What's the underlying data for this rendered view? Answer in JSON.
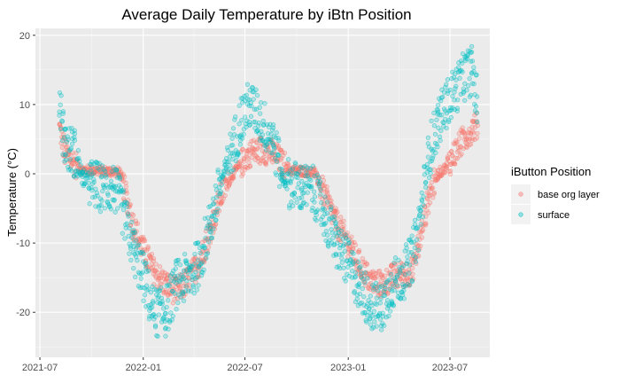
{
  "chart_data": {
    "type": "scatter",
    "title": "Average Daily Temperature by iBtn Position",
    "xlabel": "",
    "ylabel": "Temperature (°C)",
    "xlim": [
      "2021-06-23",
      "2023-09-10"
    ],
    "ylim": [
      -26.5,
      21
    ],
    "x_ticks": [
      {
        "date": "2021-07-01",
        "label": "2021-07"
      },
      {
        "date": "2022-01-01",
        "label": "2022-01"
      },
      {
        "date": "2022-07-01",
        "label": "2022-07"
      },
      {
        "date": "2023-01-01",
        "label": "2023-01"
      },
      {
        "date": "2023-07-01",
        "label": "2023-07"
      }
    ],
    "y_ticks": [
      -20,
      -10,
      0,
      10,
      20
    ],
    "grid": true,
    "legend": {
      "title": "iButton Position",
      "placement": "right",
      "entries": [
        "base org layer",
        "surface"
      ]
    },
    "series": [
      {
        "name": "base org layer",
        "color": "#F8766D",
        "marker": "open-circle",
        "points_are_envelope": true,
        "x": [
          "2021-08-05",
          "2021-08-15",
          "2021-09-01",
          "2021-09-15",
          "2021-10-01",
          "2021-10-20",
          "2021-11-10",
          "2021-11-20",
          "2021-12-01",
          "2021-12-15",
          "2022-01-01",
          "2022-01-20",
          "2022-02-10",
          "2022-03-01",
          "2022-03-20",
          "2022-04-10",
          "2022-05-01",
          "2022-05-20",
          "2022-06-10",
          "2022-06-25",
          "2022-07-10",
          "2022-08-01",
          "2022-08-20",
          "2022-09-05",
          "2022-09-20",
          "2022-10-10",
          "2022-11-01",
          "2022-11-20",
          "2022-12-10",
          "2023-01-01",
          "2023-01-20",
          "2023-02-10",
          "2023-03-01",
          "2023-03-20",
          "2023-04-10",
          "2023-04-25",
          "2023-05-10",
          "2023-05-25",
          "2023-06-10",
          "2023-06-25",
          "2023-07-10",
          "2023-07-25",
          "2023-08-10",
          "2023-08-20"
        ],
        "y": [
          6.5,
          3,
          1.5,
          0.5,
          0.5,
          0.4,
          0.3,
          0.2,
          -3,
          -7.5,
          -11,
          -14,
          -16,
          -17,
          -15.5,
          -13,
          -8,
          -3,
          0,
          1.5,
          3,
          3.5,
          3,
          1.5,
          0.5,
          0.4,
          0.2,
          -3,
          -7,
          -10,
          -13,
          -15.5,
          -16,
          -15,
          -14.5,
          -14,
          -9,
          -3,
          0,
          1,
          3,
          5,
          6.5,
          7
        ]
      },
      {
        "name": "surface",
        "color": "#00BFC4",
        "marker": "open-circle",
        "points_are_envelope": true,
        "x": [
          "2021-08-05",
          "2021-08-15",
          "2021-09-01",
          "2021-09-15",
          "2021-10-01",
          "2021-10-20",
          "2021-11-10",
          "2021-11-20",
          "2021-12-01",
          "2021-12-15",
          "2022-01-01",
          "2022-01-20",
          "2022-02-10",
          "2022-03-01",
          "2022-03-20",
          "2022-04-10",
          "2022-05-01",
          "2022-05-20",
          "2022-06-10",
          "2022-06-25",
          "2022-07-10",
          "2022-08-01",
          "2022-08-20",
          "2022-09-05",
          "2022-09-20",
          "2022-10-10",
          "2022-11-01",
          "2022-11-20",
          "2022-12-10",
          "2023-01-01",
          "2023-01-20",
          "2023-02-10",
          "2023-03-01",
          "2023-03-20",
          "2023-04-10",
          "2023-04-25",
          "2023-05-10",
          "2023-05-25",
          "2023-06-10",
          "2023-06-25",
          "2023-07-10",
          "2023-07-25",
          "2023-08-10",
          "2023-08-20"
        ],
        "y": [
          11,
          4,
          3,
          -0.5,
          -1.5,
          -2,
          -2,
          -4,
          -7,
          -11,
          -15,
          -20,
          -20,
          -16,
          -15,
          -13,
          -7,
          -1,
          4,
          8,
          10,
          7.5,
          5,
          -0.5,
          -1.5,
          -2,
          -2.5,
          -6,
          -10,
          -13,
          -16,
          -19,
          -19.5,
          -16,
          -14.5,
          -12,
          -6,
          3,
          7.5,
          10,
          12,
          14,
          15,
          9
        ]
      }
    ]
  }
}
